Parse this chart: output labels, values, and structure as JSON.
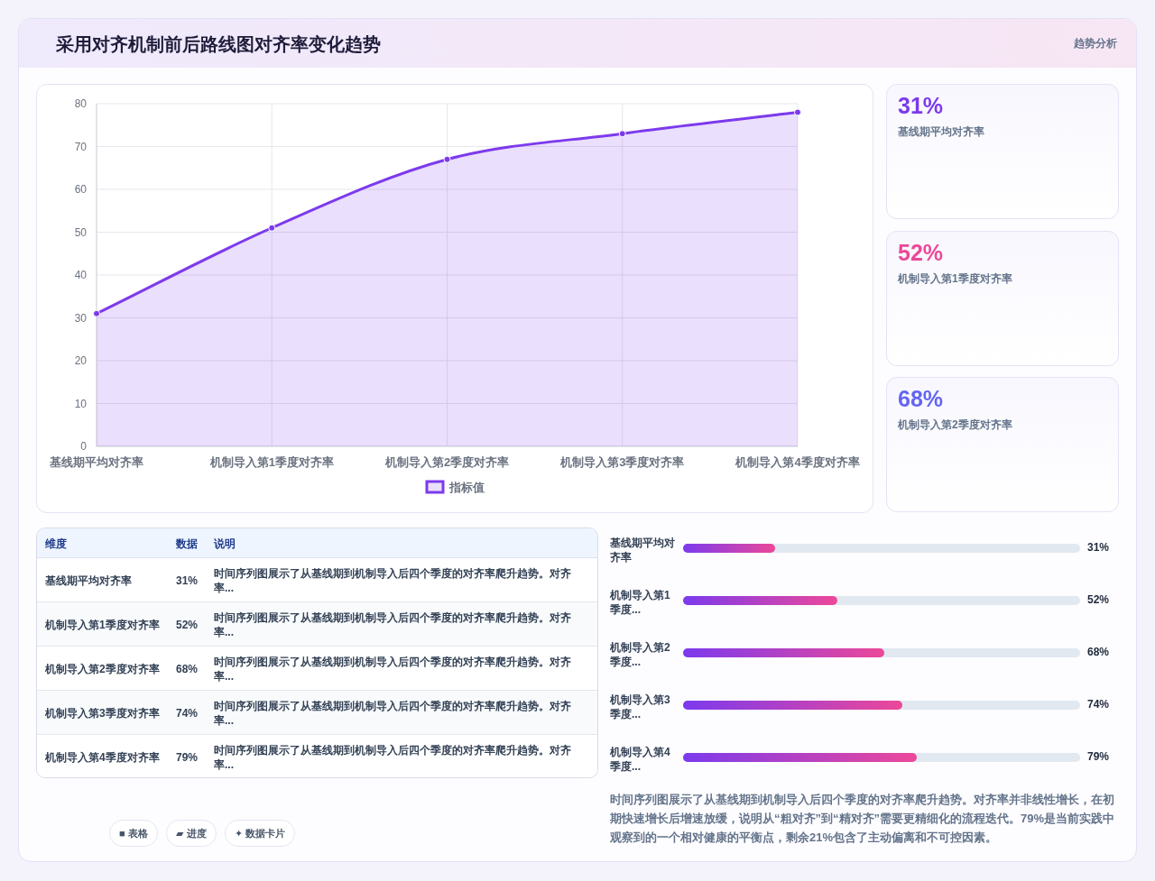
{
  "chart_data": [
    {
      "type": "area",
      "title": "采用对齐机制前后路线图对齐率变化趋势",
      "categories": [
        "基线期平均对齐率",
        "机制导入第1季度对齐率",
        "机制导入第2季度对齐率",
        "机制导入第3季度对齐率",
        "机制导入第4季度对齐率"
      ],
      "series": [
        {
          "name": "指标值",
          "color": "#7c3aed",
          "values": [
            31,
            51,
            67,
            73,
            78
          ]
        }
      ],
      "ylim": [
        0,
        80
      ],
      "yticks": [
        0,
        10,
        20,
        30,
        40,
        50,
        60,
        70,
        80
      ],
      "grid": true,
      "legend": "bottom",
      "marker": "circle"
    },
    {
      "type": "other",
      "title": "趋势分析",
      "annotations": [
        "31%",
        "基线期平均对齐率",
        "52%",
        "机制导入第1季度对齐率",
        "68%",
        "机制导入第2季度对齐率"
      ],
      "colors": [
        "#7c3aed",
        "#ec4899",
        "#6366f1"
      ]
    },
    {
      "type": "other",
      "categories": [
        "维度",
        "数据",
        "说明"
      ],
      "annotations": [
        "基线期平均对齐率",
        "31%",
        "时间序列图展示了从基线期到机制导入后四个季度的对齐率爬升趋势。对齐率...",
        "机制导入第1季度对齐率",
        "52%",
        "时间序列图展示了从基线期到机制导入后四个季度的对齐率爬升趋势。对齐率...",
        "机制导入第2季度对齐率",
        "68%",
        "时间序列图展示了从基线期到机制导入后四个季度的对齐率爬升趋势。对齐率...",
        "机制导入第3季度对齐率",
        "74%",
        "时间序列图展示了从基线期到机制导入后四个季度的对齐率爬升趋势。对齐率...",
        "机制导入第4季度对齐率",
        "79%",
        "时间序列图展示了从基线期到机制导入后四个季度的对齐率爬升趋势。对齐率..."
      ]
    },
    {
      "type": "bar",
      "orientation": "horizontal",
      "categories": [
        "基线期平均对齐率",
        "机制导入第1季度...",
        "机制导入第2季度...",
        "机制导入第3季度...",
        "机制导入第4季度..."
      ],
      "values": [
        31,
        52,
        68,
        74,
        79
      ],
      "value_labels": [
        "31%",
        "52%",
        "68%",
        "74%",
        "79%"
      ],
      "xlim": [
        0,
        134
      ],
      "color": "#ec4899",
      "annotations": [
        "时间序列图展示了从基线期到机制导入后四个季度的对齐率爬升趋势。对齐率并非线性增长，在初期快速增长后增速放缓，说明从“粗对齐”到“精对齐”需要更精细化的流程迭代。79%是当前实践中观察到的一个相对健康的平衡点，剩余21%包含了主动偏离和不可控因素。"
      ]
    },
    {
      "type": "other",
      "annotations": [
        "■ 表格",
        "▰ 进度",
        "✦ 数据卡片"
      ]
    }
  ]
}
